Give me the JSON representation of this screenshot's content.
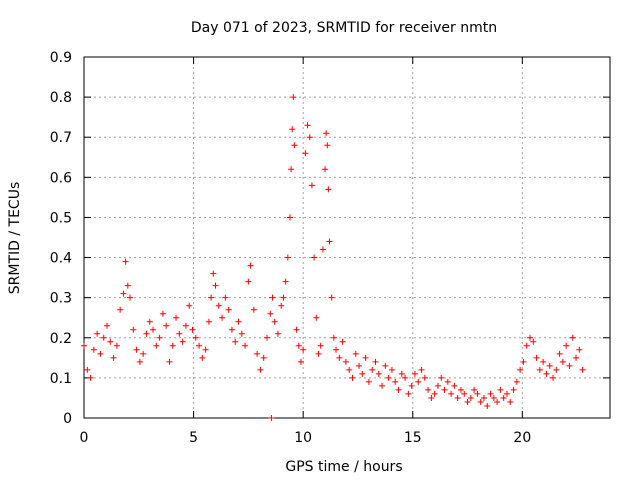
{
  "chart_data": {
    "type": "scatter",
    "title": "Day 071 of 2023, SRMTID for receiver nmtn",
    "xlabel": "GPS time / hours",
    "ylabel": "SRMTID / TECUs",
    "xlim": [
      0,
      24
    ],
    "ylim": [
      0,
      0.9
    ],
    "xticks": [
      0,
      5,
      10,
      15,
      20
    ],
    "xtick_labels": [
      "0",
      "5",
      "10",
      "15",
      "20"
    ],
    "yticks": [
      0,
      0.1,
      0.2,
      0.3,
      0.4,
      0.5,
      0.6,
      0.7,
      0.8,
      0.9
    ],
    "ytick_labels": [
      "0",
      "0.1",
      "0.2",
      "0.3",
      "0.4",
      "0.5",
      "0.6",
      "0.7",
      "0.8",
      "0.9"
    ],
    "grid": true,
    "marker": "+",
    "color": "#ff0000",
    "series": [
      {
        "name": "SRMTID",
        "x": [
          0.0,
          0.15,
          0.3,
          0.45,
          0.6,
          0.75,
          0.9,
          1.05,
          1.2,
          1.35,
          1.5,
          1.65,
          1.8,
          1.9,
          2.0,
          2.1,
          2.25,
          2.4,
          2.55,
          2.7,
          2.85,
          3.0,
          3.15,
          3.3,
          3.45,
          3.6,
          3.75,
          3.9,
          4.05,
          4.2,
          4.35,
          4.5,
          4.65,
          4.8,
          4.95,
          5.1,
          5.25,
          5.4,
          5.55,
          5.7,
          5.8,
          5.9,
          6.0,
          6.15,
          6.3,
          6.45,
          6.6,
          6.75,
          6.9,
          7.05,
          7.2,
          7.35,
          7.5,
          7.6,
          7.75,
          7.9,
          8.05,
          8.2,
          8.35,
          8.5,
          8.6,
          8.7,
          8.85,
          9.0,
          9.1,
          9.2,
          9.3,
          9.4,
          9.45,
          9.5,
          9.55,
          9.6,
          9.7,
          9.8,
          9.9,
          10.0,
          10.1,
          10.2,
          10.3,
          10.4,
          10.5,
          10.6,
          10.7,
          10.8,
          10.9,
          11.0,
          11.05,
          11.1,
          11.15,
          11.2,
          11.3,
          11.4,
          11.5,
          11.65,
          11.8,
          11.95,
          12.1,
          12.25,
          12.4,
          12.55,
          12.7,
          12.85,
          13.0,
          13.15,
          13.3,
          13.45,
          13.6,
          13.75,
          13.9,
          14.05,
          14.2,
          14.35,
          14.5,
          14.65,
          14.8,
          14.95,
          15.1,
          15.25,
          15.4,
          15.55,
          15.7,
          15.85,
          16.0,
          16.15,
          16.3,
          16.45,
          16.6,
          16.75,
          16.9,
          17.05,
          17.2,
          17.35,
          17.5,
          17.65,
          17.8,
          17.95,
          18.1,
          18.25,
          18.4,
          18.55,
          18.7,
          18.85,
          19.0,
          19.15,
          19.3,
          19.45,
          19.6,
          19.75,
          19.9,
          20.05,
          20.2,
          20.35,
          20.5,
          20.65,
          20.8,
          20.95,
          21.1,
          21.25,
          21.4,
          21.55,
          21.7,
          21.85,
          22.0,
          22.15,
          22.3,
          22.45,
          22.6,
          22.75
        ],
        "y": [
          0.18,
          0.12,
          0.1,
          0.17,
          0.21,
          0.16,
          0.2,
          0.23,
          0.19,
          0.15,
          0.18,
          0.27,
          0.31,
          0.39,
          0.33,
          0.3,
          0.22,
          0.17,
          0.14,
          0.16,
          0.21,
          0.24,
          0.22,
          0.18,
          0.2,
          0.26,
          0.23,
          0.14,
          0.18,
          0.25,
          0.21,
          0.19,
          0.23,
          0.28,
          0.22,
          0.2,
          0.18,
          0.15,
          0.17,
          0.24,
          0.3,
          0.36,
          0.33,
          0.28,
          0.25,
          0.3,
          0.27,
          0.22,
          0.19,
          0.24,
          0.21,
          0.18,
          0.34,
          0.38,
          0.27,
          0.16,
          0.12,
          0.15,
          0.2,
          0.26,
          0.3,
          0.24,
          0.21,
          0.28,
          0.3,
          0.34,
          0.4,
          0.5,
          0.62,
          0.72,
          0.8,
          0.68,
          0.22,
          0.18,
          0.14,
          0.17,
          0.66,
          0.73,
          0.7,
          0.58,
          0.4,
          0.25,
          0.16,
          0.18,
          0.42,
          0.62,
          0.71,
          0.68,
          0.57,
          0.44,
          0.3,
          0.2,
          0.17,
          0.15,
          0.19,
          0.14,
          0.12,
          0.1,
          0.16,
          0.13,
          0.11,
          0.15,
          0.09,
          0.12,
          0.14,
          0.11,
          0.08,
          0.13,
          0.1,
          0.12,
          0.09,
          0.07,
          0.11,
          0.1,
          0.06,
          0.08,
          0.11,
          0.09,
          0.12,
          0.1,
          0.07,
          0.05,
          0.06,
          0.08,
          0.1,
          0.07,
          0.09,
          0.06,
          0.08,
          0.05,
          0.07,
          0.06,
          0.04,
          0.05,
          0.07,
          0.06,
          0.04,
          0.05,
          0.03,
          0.06,
          0.05,
          0.04,
          0.07,
          0.05,
          0.06,
          0.04,
          0.07,
          0.09,
          0.12,
          0.14,
          0.18,
          0.2,
          0.19,
          0.15,
          0.12,
          0.14,
          0.11,
          0.13,
          0.1,
          0.12,
          0.16,
          0.14,
          0.18,
          0.13,
          0.2,
          0.15,
          0.17,
          0.12
        ]
      }
    ],
    "outlier_points": [
      {
        "x": 8.55,
        "y": 0.0
      }
    ]
  }
}
